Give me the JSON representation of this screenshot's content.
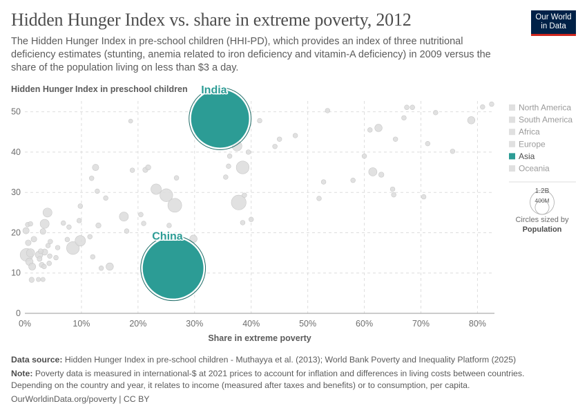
{
  "header": {
    "title": "Hidden Hunger Index vs. share in extreme poverty, 2012",
    "subtitle": "The Hidden Hunger Index in pre-school children (HHI-PD), which provides an index of three nutritional deficiency estimates (stunting, anemia related to iron deficiency and vitamin-A deficiency) in 2009 versus the share of the population living on less than $3 a day.",
    "logo_line1": "Our World",
    "logo_line2": "in Data"
  },
  "chart_data": {
    "type": "scatter",
    "title": "Hidden Hunger Index vs. share in extreme poverty, 2012",
    "ylabel": "Hidden Hunger Index in preschool children",
    "xlabel": "Share in extreme poverty",
    "xlim": [
      0,
      83
    ],
    "ylim": [
      0,
      52
    ],
    "x_ticks": [
      0,
      10,
      20,
      30,
      40,
      50,
      60,
      70,
      80
    ],
    "x_tick_labels": [
      "0%",
      "10%",
      "20%",
      "30%",
      "40%",
      "50%",
      "60%",
      "70%",
      "80%"
    ],
    "y_ticks": [
      0,
      10,
      20,
      30,
      40,
      50
    ],
    "y_tick_labels": [
      "0",
      "10",
      "20",
      "30",
      "40",
      "50"
    ],
    "grid": "dashed",
    "legend": {
      "placement": "right",
      "items": [
        {
          "name": "North America",
          "color": "#e0e0e0"
        },
        {
          "name": "South America",
          "color": "#e0e0e0"
        },
        {
          "name": "Africa",
          "color": "#e0e0e0"
        },
        {
          "name": "Europe",
          "color": "#e0e0e0"
        },
        {
          "name": "Asia",
          "color": "#2c9c95",
          "active": true
        },
        {
          "name": "Oceania",
          "color": "#e0e0e0"
        }
      ]
    },
    "size_legend": {
      "large_label": "1.2B",
      "small_label": "400M",
      "large_value": 1200000000,
      "small_value": 400000000,
      "caption_line1": "Circles sized by",
      "caption_line2": "Population"
    },
    "highlighted": [
      {
        "label": "India",
        "x": 34.5,
        "y": 48.3,
        "population": 1250000000,
        "color": "#2c9c95"
      },
      {
        "label": "China",
        "x": 26.2,
        "y": 11.2,
        "population": 1370000000,
        "color": "#2c9c95"
      }
    ],
    "points": [
      {
        "x": 0.3,
        "y": 14.5,
        "population": 60000000
      },
      {
        "x": 0.8,
        "y": 12.8,
        "population": 20000000
      },
      {
        "x": 1.2,
        "y": 8.3,
        "population": 10000000
      },
      {
        "x": 0.2,
        "y": 20.5,
        "population": 15000000
      },
      {
        "x": 0.5,
        "y": 22.0,
        "population": 8000000
      },
      {
        "x": 1.0,
        "y": 22.2,
        "population": 8000000
      },
      {
        "x": 0.6,
        "y": 17.5,
        "population": 12000000
      },
      {
        "x": 1.6,
        "y": 18.4,
        "population": 12000000
      },
      {
        "x": 1.3,
        "y": 11.6,
        "population": 18000000
      },
      {
        "x": 1.0,
        "y": 15.0,
        "population": 25000000
      },
      {
        "x": 2.5,
        "y": 14.5,
        "population": 20000000
      },
      {
        "x": 2.6,
        "y": 13.5,
        "population": 9000000
      },
      {
        "x": 2.8,
        "y": 15.4,
        "population": 9000000
      },
      {
        "x": 3.0,
        "y": 12.0,
        "population": 10000000
      },
      {
        "x": 3.4,
        "y": 11.6,
        "population": 8000000
      },
      {
        "x": 2.4,
        "y": 8.4,
        "population": 7000000
      },
      {
        "x": 3.2,
        "y": 8.4,
        "population": 7000000
      },
      {
        "x": 3.5,
        "y": 15.2,
        "population": 14000000
      },
      {
        "x": 3.2,
        "y": 20.3,
        "population": 12000000
      },
      {
        "x": 3.5,
        "y": 22.2,
        "population": 30000000
      },
      {
        "x": 4.3,
        "y": 12.4,
        "population": 8000000
      },
      {
        "x": 4.4,
        "y": 14.2,
        "population": 8000000
      },
      {
        "x": 4.1,
        "y": 16.8,
        "population": 8000000
      },
      {
        "x": 4.0,
        "y": 25.0,
        "population": 30000000
      },
      {
        "x": 4.5,
        "y": 17.8,
        "population": 8000000
      },
      {
        "x": 5.5,
        "y": 13.8,
        "population": 8000000
      },
      {
        "x": 5.8,
        "y": 16.3,
        "population": 8000000
      },
      {
        "x": 6.8,
        "y": 22.4,
        "population": 8000000
      },
      {
        "x": 7.5,
        "y": 18.3,
        "population": 8000000
      },
      {
        "x": 7.8,
        "y": 21.4,
        "population": 8000000
      },
      {
        "x": 8.5,
        "y": 16.2,
        "population": 60000000
      },
      {
        "x": 9.6,
        "y": 23.0,
        "population": 8000000
      },
      {
        "x": 9.8,
        "y": 26.6,
        "population": 8000000
      },
      {
        "x": 9.8,
        "y": 18.0,
        "population": 40000000
      },
      {
        "x": 11.8,
        "y": 33.5,
        "population": 8000000
      },
      {
        "x": 11.5,
        "y": 19.0,
        "population": 8000000
      },
      {
        "x": 12.0,
        "y": 14.0,
        "population": 8000000
      },
      {
        "x": 12.5,
        "y": 36.2,
        "population": 15000000
      },
      {
        "x": 12.8,
        "y": 30.3,
        "population": 8000000
      },
      {
        "x": 13.0,
        "y": 21.8,
        "population": 10000000
      },
      {
        "x": 13.5,
        "y": 11.2,
        "population": 8000000
      },
      {
        "x": 15.0,
        "y": 11.6,
        "population": 20000000
      },
      {
        "x": 14.3,
        "y": 28.6,
        "population": 8000000
      },
      {
        "x": 17.5,
        "y": 24.0,
        "population": 30000000
      },
      {
        "x": 18.0,
        "y": 20.4,
        "population": 8000000
      },
      {
        "x": 18.7,
        "y": 47.7,
        "population": 6000000
      },
      {
        "x": 19.0,
        "y": 35.5,
        "population": 8000000
      },
      {
        "x": 20.5,
        "y": 24.5,
        "population": 8000000
      },
      {
        "x": 21.0,
        "y": 22.3,
        "population": 8000000
      },
      {
        "x": 21.3,
        "y": 35.6,
        "population": 10000000
      },
      {
        "x": 21.8,
        "y": 36.2,
        "population": 10000000
      },
      {
        "x": 23.2,
        "y": 30.8,
        "population": 40000000
      },
      {
        "x": 25.0,
        "y": 29.3,
        "population": 60000000
      },
      {
        "x": 26.5,
        "y": 26.8,
        "population": 70000000
      },
      {
        "x": 25.5,
        "y": 21.8,
        "population": 8000000
      },
      {
        "x": 26.8,
        "y": 33.6,
        "population": 8000000
      },
      {
        "x": 29.8,
        "y": 18.5,
        "population": 20000000
      },
      {
        "x": 33.5,
        "y": 44.5,
        "population": 8000000
      },
      {
        "x": 35.5,
        "y": 33.8,
        "population": 8000000
      },
      {
        "x": 36.0,
        "y": 36.5,
        "population": 8000000
      },
      {
        "x": 36.2,
        "y": 39.0,
        "population": 8000000
      },
      {
        "x": 37.5,
        "y": 41.5,
        "population": 35000000
      },
      {
        "x": 37.8,
        "y": 27.5,
        "population": 80000000
      },
      {
        "x": 38.5,
        "y": 36.2,
        "population": 60000000
      },
      {
        "x": 38.5,
        "y": 22.5,
        "population": 8000000
      },
      {
        "x": 38.8,
        "y": 29.3,
        "population": 8000000
      },
      {
        "x": 39.5,
        "y": 40.0,
        "population": 8000000
      },
      {
        "x": 40.0,
        "y": 23.3,
        "population": 8000000
      },
      {
        "x": 41.5,
        "y": 47.8,
        "population": 8000000
      },
      {
        "x": 44.2,
        "y": 41.4,
        "population": 8000000
      },
      {
        "x": 45.0,
        "y": 43.2,
        "population": 8000000
      },
      {
        "x": 47.8,
        "y": 44.1,
        "population": 8000000
      },
      {
        "x": 52.0,
        "y": 28.5,
        "population": 8000000
      },
      {
        "x": 52.8,
        "y": 32.6,
        "population": 8000000
      },
      {
        "x": 53.5,
        "y": 50.3,
        "population": 8000000
      },
      {
        "x": 58.0,
        "y": 33.0,
        "population": 8000000
      },
      {
        "x": 60.0,
        "y": 39.0,
        "population": 8000000
      },
      {
        "x": 61.0,
        "y": 45.5,
        "population": 8000000
      },
      {
        "x": 61.5,
        "y": 35.1,
        "population": 25000000
      },
      {
        "x": 62.5,
        "y": 46.0,
        "population": 20000000
      },
      {
        "x": 63.0,
        "y": 34.4,
        "population": 10000000
      },
      {
        "x": 65.0,
        "y": 30.8,
        "population": 8000000
      },
      {
        "x": 65.2,
        "y": 29.4,
        "population": 8000000
      },
      {
        "x": 65.5,
        "y": 43.2,
        "population": 8000000
      },
      {
        "x": 67.0,
        "y": 48.5,
        "population": 8000000
      },
      {
        "x": 67.5,
        "y": 51.1,
        "population": 8000000
      },
      {
        "x": 68.5,
        "y": 51.1,
        "population": 8000000
      },
      {
        "x": 70.5,
        "y": 28.9,
        "population": 8000000
      },
      {
        "x": 71.2,
        "y": 42.1,
        "population": 8000000
      },
      {
        "x": 72.6,
        "y": 49.8,
        "population": 8000000
      },
      {
        "x": 75.6,
        "y": 40.2,
        "population": 8000000
      },
      {
        "x": 78.9,
        "y": 47.9,
        "population": 20000000
      },
      {
        "x": 80.9,
        "y": 51.2,
        "population": 8000000
      },
      {
        "x": 82.5,
        "y": 51.9,
        "population": 8000000
      }
    ]
  },
  "footer": {
    "source_label": "Data source:",
    "source_text": "Hidden Hunger Index in pre-school children - Muthayya et al. (2013); World Bank Poverty and Inequality Platform (2025)",
    "note_label": "Note:",
    "note_text": "Poverty data is measured in international-$ at 2021 prices to account for inflation and differences in living costs between countries. Depending on the country and year, it relates to income (measured after taxes and benefits) or to consumption, per capita.",
    "url": "OurWorldinData.org/poverty | CC BY"
  }
}
